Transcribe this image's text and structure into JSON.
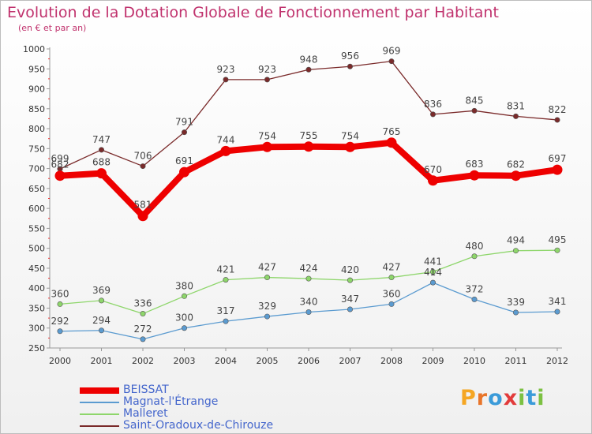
{
  "header": {
    "title": "Evolution de la Dotation Globale de Fonctionnement par Habitant",
    "subtitle": "(en € et par an)"
  },
  "logo": {
    "text": "Proxiti",
    "letters": [
      "P",
      "r",
      "o",
      "x",
      "i",
      "t",
      "i"
    ],
    "colors": [
      "#f5a623",
      "#e8752a",
      "#3b9bd9",
      "#e23b3b",
      "#7cc142",
      "#3b9bd9",
      "#7cc142"
    ]
  },
  "chart_data": {
    "type": "line",
    "title": "Evolution de la Dotation Globale de Fonctionnement par Habitant",
    "subtitle": "(en € et par an)",
    "x": [
      "2000",
      "2001",
      "2002",
      "2003",
      "2004",
      "2005",
      "2006",
      "2007",
      "2008",
      "2009",
      "2010",
      "2011",
      "2012"
    ],
    "ylim": [
      250,
      1000
    ],
    "yticks": [
      "250",
      "300",
      "350",
      "400",
      "450",
      "500",
      "550",
      "600",
      "650",
      "700",
      "750",
      "800",
      "850",
      "900",
      "950",
      "1000"
    ],
    "grid": false,
    "legend_position": "bottom-left",
    "series": [
      {
        "name": "BEISSAT",
        "color": "#ee0000",
        "labelColor": "#444444",
        "values": [
          682,
          688,
          581,
          691,
          744,
          754,
          755,
          754,
          765,
          670,
          683,
          682,
          697
        ]
      },
      {
        "name": "Magnat-l'Étrange",
        "color": "#5b9bd0",
        "labelColor": "#444444",
        "values": [
          292,
          294,
          272,
          300,
          317,
          329,
          340,
          347,
          360,
          414,
          372,
          339,
          341
        ]
      },
      {
        "name": "Malleret",
        "color": "#8ed66b",
        "labelColor": "#444444",
        "values": [
          360,
          369,
          336,
          380,
          421,
          427,
          424,
          420,
          427,
          441,
          480,
          494,
          495
        ]
      },
      {
        "name": "Saint-Oradoux-de-Chirouze",
        "color": "#7a2a2a",
        "labelColor": "#444444",
        "values": [
          699,
          747,
          706,
          791,
          923,
          923,
          948,
          956,
          969,
          836,
          845,
          831,
          822
        ]
      }
    ]
  },
  "legend_label_color": "#4466cc"
}
